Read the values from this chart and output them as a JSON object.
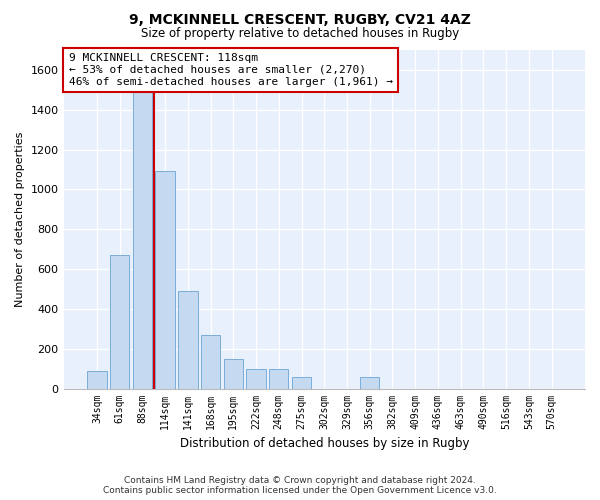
{
  "title": "9, MCKINNELL CRESCENT, RUGBY, CV21 4AZ",
  "subtitle": "Size of property relative to detached houses in Rugby",
  "xlabel": "Distribution of detached houses by size in Rugby",
  "ylabel": "Number of detached properties",
  "bar_color": "#c5d9f0",
  "bar_edge_color": "#7aadda",
  "background_color": "#e8f0fb",
  "grid_color": "#ffffff",
  "property_line_color": "#cc0000",
  "annotation_text": "9 MCKINNELL CRESCENT: 118sqm\n← 53% of detached houses are smaller (2,270)\n46% of semi-detached houses are larger (1,961) →",
  "footer": "Contains HM Land Registry data © Crown copyright and database right 2024.\nContains public sector information licensed under the Open Government Licence v3.0.",
  "categories": [
    "34sqm",
    "61sqm",
    "88sqm",
    "114sqm",
    "141sqm",
    "168sqm",
    "195sqm",
    "222sqm",
    "248sqm",
    "275sqm",
    "302sqm",
    "329sqm",
    "356sqm",
    "382sqm",
    "409sqm",
    "436sqm",
    "463sqm",
    "490sqm",
    "516sqm",
    "543sqm",
    "570sqm"
  ],
  "values": [
    90,
    670,
    1540,
    1090,
    490,
    270,
    150,
    100,
    100,
    60,
    0,
    0,
    60,
    0,
    0,
    0,
    0,
    0,
    0,
    0,
    0
  ],
  "ylim": [
    0,
    1700
  ],
  "yticks": [
    0,
    200,
    400,
    600,
    800,
    1000,
    1200,
    1400,
    1600
  ],
  "prop_line_bar_index": 3
}
